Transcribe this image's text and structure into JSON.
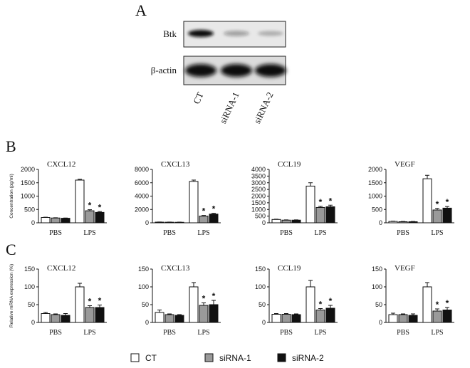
{
  "panels": {
    "a": "A",
    "b": "B",
    "c": "C"
  },
  "blot": {
    "rows": [
      "Btk",
      "β-actin"
    ],
    "lanes": [
      "CT",
      "siRNA-1",
      "siRNA-2"
    ],
    "btk_intensity": [
      1.0,
      0.35,
      0.25
    ],
    "actin_intensity": [
      1.0,
      1.0,
      1.0
    ]
  },
  "colors": {
    "CT": "#ffffff",
    "siRNA-1": "#9a9a9a",
    "siRNA-2": "#111111"
  },
  "chart_data": [
    {
      "panel": "B",
      "type": "bar",
      "title": "CXCL12",
      "ylabel": "Concentration (pg/ml)",
      "categories": [
        "PBS",
        "LPS"
      ],
      "ylim": [
        0,
        2000
      ],
      "yticks": [
        0,
        500,
        1000,
        1500,
        2000
      ],
      "series": [
        {
          "name": "CT",
          "values": [
            200,
            1600
          ],
          "errors": [
            10,
            30
          ],
          "signif": [
            false,
            false
          ]
        },
        {
          "name": "siRNA-1",
          "values": [
            180,
            450
          ],
          "errors": [
            10,
            40
          ],
          "signif": [
            false,
            true
          ]
        },
        {
          "name": "siRNA-2",
          "values": [
            170,
            390
          ],
          "errors": [
            10,
            30
          ],
          "signif": [
            false,
            true
          ]
        }
      ]
    },
    {
      "panel": "B",
      "type": "bar",
      "title": "CXCL13",
      "ylabel": "",
      "categories": [
        "PBS",
        "LPS"
      ],
      "ylim": [
        0,
        8000
      ],
      "yticks": [
        0,
        2000,
        4000,
        6000,
        8000
      ],
      "series": [
        {
          "name": "CT",
          "values": [
            100,
            6200
          ],
          "errors": [
            20,
            200
          ],
          "signif": [
            false,
            false
          ]
        },
        {
          "name": "siRNA-1",
          "values": [
            90,
            1000
          ],
          "errors": [
            20,
            100
          ],
          "signif": [
            false,
            true
          ]
        },
        {
          "name": "siRNA-2",
          "values": [
            80,
            1300
          ],
          "errors": [
            20,
            120
          ],
          "signif": [
            false,
            true
          ]
        }
      ]
    },
    {
      "panel": "B",
      "type": "bar",
      "title": "CCL19",
      "ylabel": "",
      "categories": [
        "PBS",
        "LPS"
      ],
      "ylim": [
        0,
        4000
      ],
      "yticks": [
        0,
        500,
        1000,
        1500,
        2000,
        2500,
        3000,
        3500,
        4000
      ],
      "series": [
        {
          "name": "CT",
          "values": [
            250,
            2750
          ],
          "errors": [
            20,
            250
          ],
          "signif": [
            false,
            false
          ]
        },
        {
          "name": "siRNA-1",
          "values": [
            200,
            1150
          ],
          "errors": [
            20,
            80
          ],
          "signif": [
            false,
            true
          ]
        },
        {
          "name": "siRNA-2",
          "values": [
            200,
            1200
          ],
          "errors": [
            20,
            120
          ],
          "signif": [
            false,
            true
          ]
        }
      ]
    },
    {
      "panel": "B",
      "type": "bar",
      "title": "VEGF",
      "ylabel": "",
      "categories": [
        "PBS",
        "LPS"
      ],
      "ylim": [
        0,
        2000
      ],
      "yticks": [
        0,
        500,
        1000,
        1500,
        2000
      ],
      "series": [
        {
          "name": "CT",
          "values": [
            50,
            1650
          ],
          "errors": [
            10,
            130
          ],
          "signif": [
            false,
            false
          ]
        },
        {
          "name": "siRNA-1",
          "values": [
            40,
            480
          ],
          "errors": [
            10,
            60
          ],
          "signif": [
            false,
            true
          ]
        },
        {
          "name": "siRNA-2",
          "values": [
            40,
            550
          ],
          "errors": [
            10,
            60
          ],
          "signif": [
            false,
            true
          ]
        }
      ]
    },
    {
      "panel": "C",
      "type": "bar",
      "title": "CXCL12",
      "ylabel": "Relative mRNA expression (%)",
      "categories": [
        "PBS",
        "LPS"
      ],
      "ylim": [
        0,
        150
      ],
      "yticks": [
        0,
        50,
        100,
        150
      ],
      "series": [
        {
          "name": "CT",
          "values": [
            25,
            100
          ],
          "errors": [
            3,
            10
          ],
          "signif": [
            false,
            false
          ]
        },
        {
          "name": "siRNA-1",
          "values": [
            22,
            42
          ],
          "errors": [
            2,
            5
          ],
          "signif": [
            false,
            true
          ]
        },
        {
          "name": "siRNA-2",
          "values": [
            20,
            42
          ],
          "errors": [
            5,
            7
          ],
          "signif": [
            false,
            true
          ]
        }
      ]
    },
    {
      "panel": "C",
      "type": "bar",
      "title": "CXCL13",
      "ylabel": "",
      "categories": [
        "PBS",
        "LPS"
      ],
      "ylim": [
        0,
        150
      ],
      "yticks": [
        0,
        50,
        100,
        150
      ],
      "series": [
        {
          "name": "CT",
          "values": [
            28,
            100
          ],
          "errors": [
            7,
            12
          ],
          "signif": [
            false,
            false
          ]
        },
        {
          "name": "siRNA-1",
          "values": [
            22,
            48
          ],
          "errors": [
            2,
            7
          ],
          "signif": [
            false,
            true
          ]
        },
        {
          "name": "siRNA-2",
          "values": [
            20,
            50
          ],
          "errors": [
            2,
            12
          ],
          "signif": [
            false,
            true
          ]
        }
      ]
    },
    {
      "panel": "C",
      "type": "bar",
      "title": "CCL19",
      "ylabel": "",
      "categories": [
        "PBS",
        "LPS"
      ],
      "ylim": [
        0,
        150
      ],
      "yticks": [
        0,
        50,
        100,
        150
      ],
      "series": [
        {
          "name": "CT",
          "values": [
            23,
            100
          ],
          "errors": [
            2,
            18
          ],
          "signif": [
            false,
            false
          ]
        },
        {
          "name": "siRNA-1",
          "values": [
            23,
            35
          ],
          "errors": [
            2,
            4
          ],
          "signif": [
            false,
            true
          ]
        },
        {
          "name": "siRNA-2",
          "values": [
            22,
            40
          ],
          "errors": [
            2,
            8
          ],
          "signif": [
            false,
            true
          ]
        }
      ]
    },
    {
      "panel": "C",
      "type": "bar",
      "title": "VEGF",
      "ylabel": "",
      "categories": [
        "PBS",
        "LPS"
      ],
      "ylim": [
        0,
        150
      ],
      "yticks": [
        0,
        50,
        100,
        150
      ],
      "series": [
        {
          "name": "CT",
          "values": [
            22,
            100
          ],
          "errors": [
            4,
            12
          ],
          "signif": [
            false,
            false
          ]
        },
        {
          "name": "siRNA-1",
          "values": [
            22,
            32
          ],
          "errors": [
            2,
            6
          ],
          "signif": [
            false,
            true
          ]
        },
        {
          "name": "siRNA-2",
          "values": [
            20,
            35
          ],
          "errors": [
            4,
            7
          ],
          "signif": [
            false,
            true
          ]
        }
      ]
    }
  ],
  "legend": {
    "items": [
      {
        "name": "CT",
        "label": "CT"
      },
      {
        "name": "siRNA-1",
        "label": "siRNA-1"
      },
      {
        "name": "siRNA-2",
        "label": "siRNA-2"
      }
    ]
  }
}
